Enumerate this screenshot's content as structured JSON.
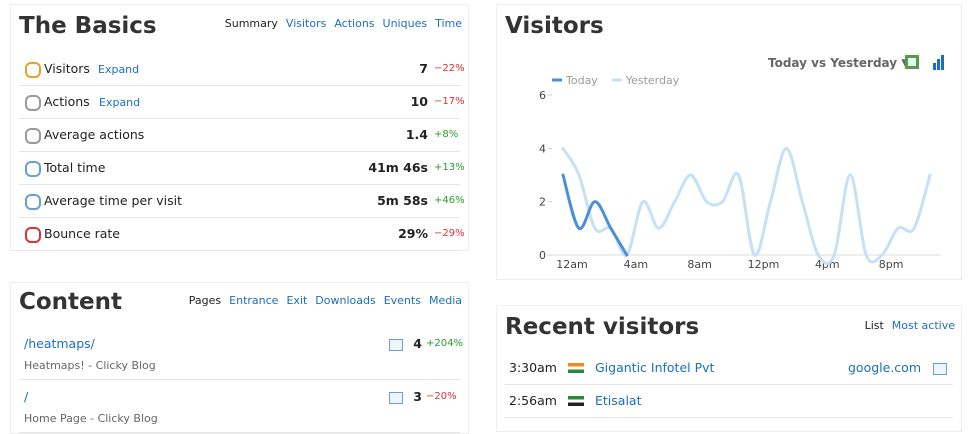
{
  "basics": {
    "title": "The Basics",
    "tabs": [
      "Summary",
      "Visitors",
      "Actions",
      "Uniques",
      "Time"
    ],
    "rows": [
      {
        "label": "Visitors",
        "expand": "Expand",
        "value": "7",
        "change": "−22%"
      },
      {
        "label": "Actions",
        "expand": "Expand",
        "value": "10",
        "change": "−17%"
      },
      {
        "label": "Average actions",
        "value": "1.4",
        "change": "+8%"
      },
      {
        "label": "Total time",
        "value": "41m 46s",
        "change": "+13%"
      },
      {
        "label": "Average time per visit",
        "value": "5m 58s",
        "change": "+46%"
      },
      {
        "label": "Bounce rate",
        "value": "29%",
        "change": "−29%"
      }
    ]
  },
  "content": {
    "title": "Content",
    "tabs": [
      "Pages",
      "Entrance",
      "Exit",
      "Downloads",
      "Events",
      "Media"
    ],
    "rows": [
      {
        "path": "/heatmaps/",
        "page_title": "Heatmaps! - Clicky Blog",
        "value": "4",
        "change": "+204%"
      },
      {
        "path": "/",
        "page_title": "Home Page - Clicky Blog",
        "value": "3",
        "change": "−20%"
      }
    ]
  },
  "visitors": {
    "title": "Visitors",
    "compare": "Today vs Yesterday ▼"
  },
  "recent": {
    "title": "Recent visitors",
    "tabs": [
      "List",
      "Most active"
    ],
    "rows": [
      {
        "time": "3:30am",
        "name": "Gigantic Infotel Pvt",
        "referrer": "google.com"
      },
      {
        "time": "2:56am",
        "name": "Etisalat"
      }
    ]
  },
  "chart_data": {
    "type": "line",
    "categories": [
      "12am",
      null,
      null,
      null,
      "4am",
      null,
      null,
      null,
      "8am",
      null,
      null,
      null,
      "12pm",
      null,
      null,
      null,
      "4pm",
      null,
      null,
      null,
      "8pm",
      null,
      null,
      null
    ],
    "series": [
      {
        "name": "Today",
        "color": "#4a90d9",
        "values": [
          3,
          1,
          2,
          1,
          0,
          null,
          null,
          null,
          null,
          null,
          null,
          null,
          null,
          null,
          null,
          null,
          null,
          null,
          null,
          null,
          null,
          null,
          null,
          null
        ]
      },
      {
        "name": "Yesterday",
        "color": "#c5e0f7",
        "values": [
          4,
          3,
          1,
          1,
          0,
          2,
          1,
          2,
          3,
          2,
          2,
          3,
          0,
          2,
          4,
          2,
          0,
          0,
          3,
          0,
          0,
          1,
          1,
          3
        ]
      }
    ],
    "ylim": [
      0,
      6
    ],
    "yticks": [
      0,
      2,
      4,
      6
    ]
  }
}
